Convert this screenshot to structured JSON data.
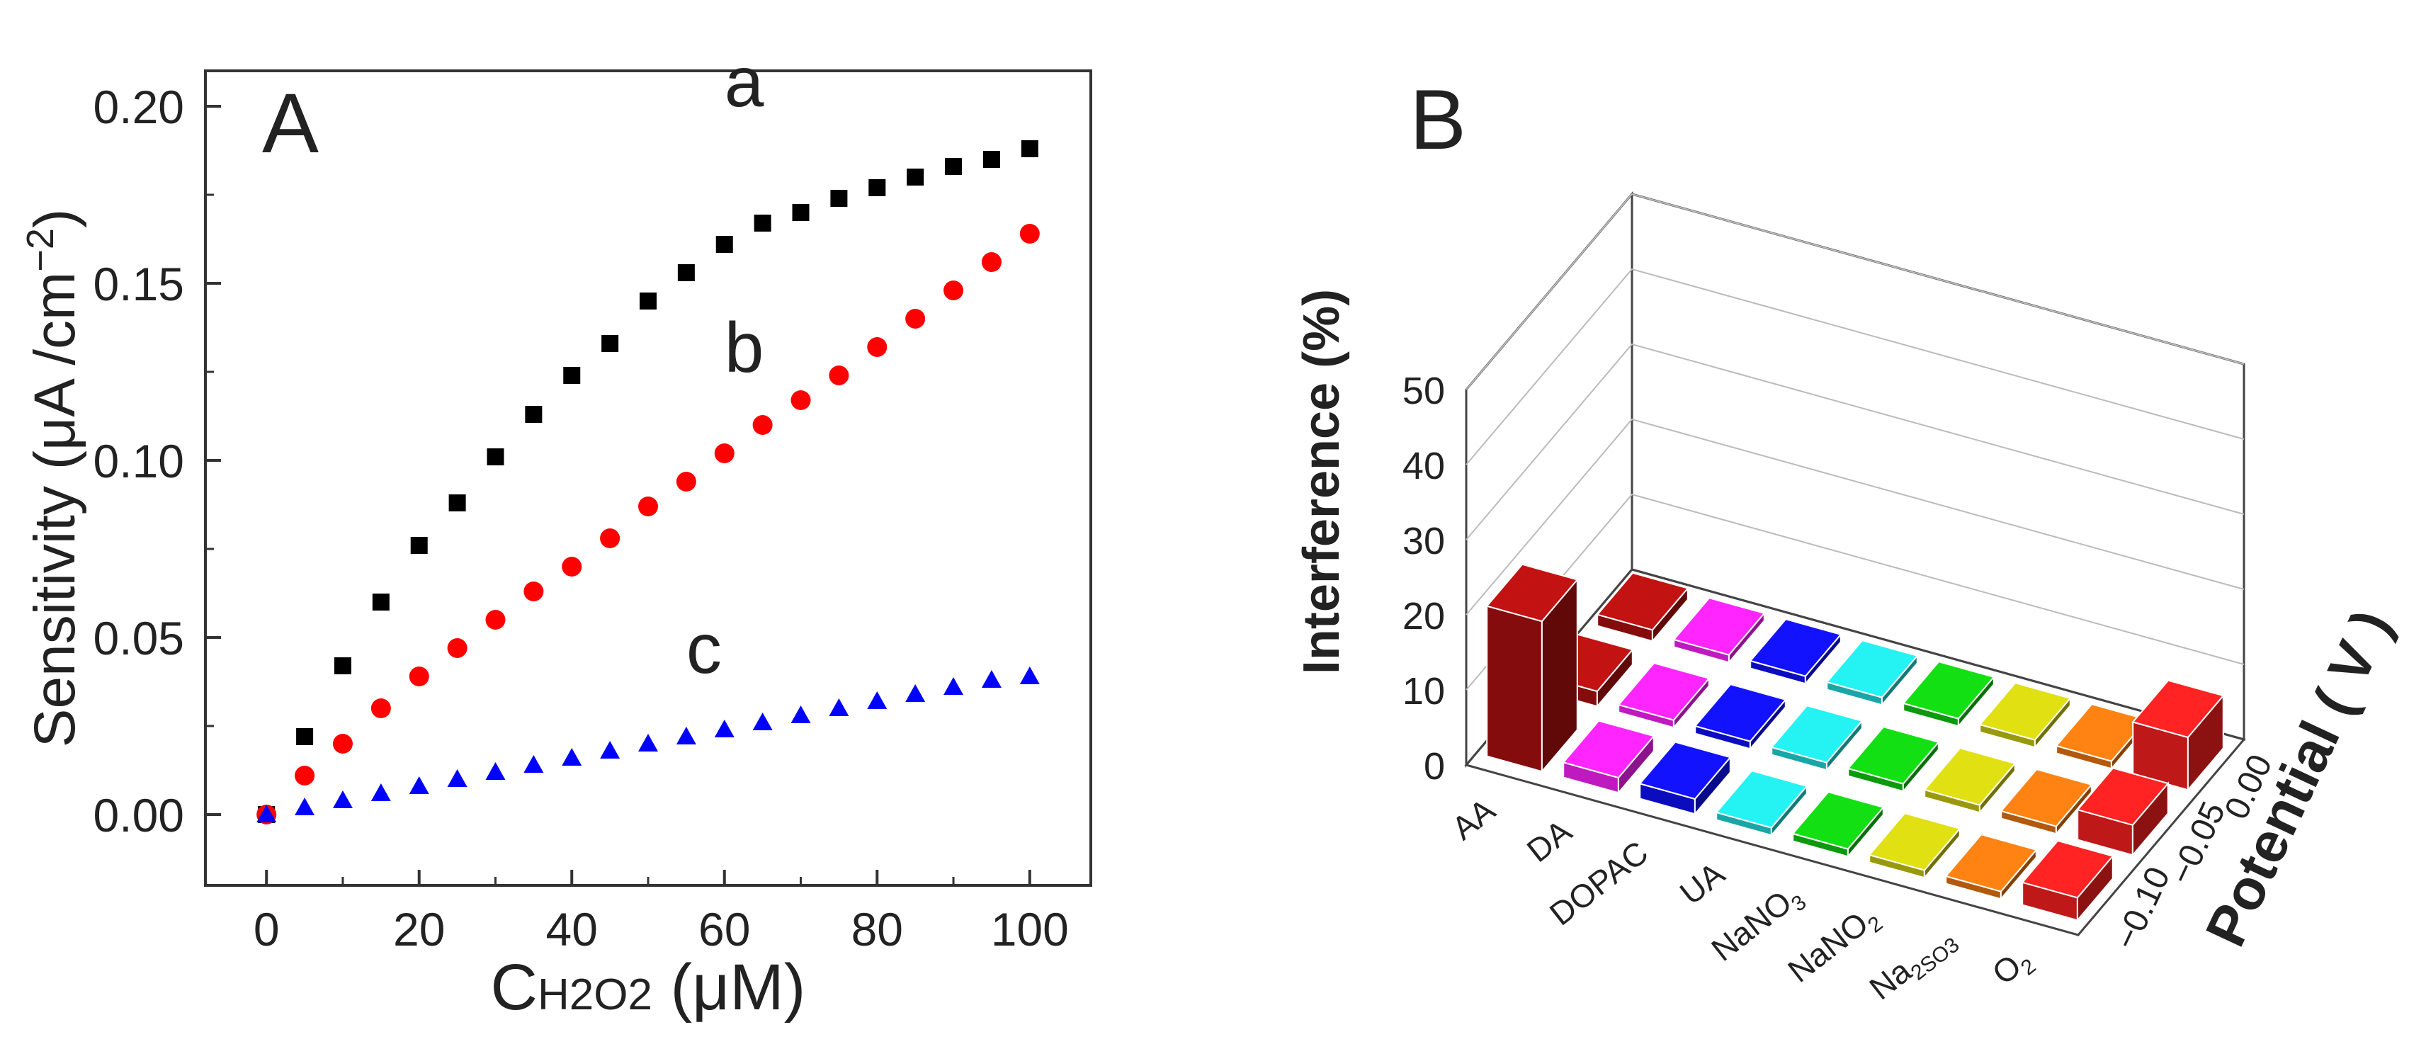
{
  "chart_data": [
    {
      "type": "scatter",
      "panel_label": "A",
      "xlabel_main": "C",
      "xlabel_sub": "H2O2",
      "xlabel_unit": " (μM)",
      "ylabel": "Sensitivity (μA /cm",
      "ylabel_sup": "−2",
      "ylabel_close": ")",
      "xlim": [
        -8,
        108
      ],
      "ylim": [
        -0.02,
        0.21
      ],
      "xticks": [
        0,
        20,
        40,
        60,
        80,
        100
      ],
      "xtick_labels": [
        "0",
        "20",
        "40",
        "60",
        "80",
        "100"
      ],
      "yticks": [
        0.0,
        0.05,
        0.1,
        0.15,
        0.2
      ],
      "ytick_labels": [
        "0.00",
        "0.05",
        "0.10",
        "0.15",
        "0.20"
      ],
      "x": [
        0,
        5,
        10,
        15,
        20,
        25,
        30,
        35,
        40,
        45,
        50,
        55,
        60,
        65,
        70,
        75,
        80,
        85,
        90,
        95,
        100
      ],
      "series": [
        {
          "name": "a",
          "marker": "square",
          "color": "#000000",
          "values": [
            0.0,
            0.022,
            0.042,
            0.06,
            0.076,
            0.088,
            0.101,
            0.113,
            0.124,
            0.133,
            0.145,
            0.153,
            0.161,
            0.167,
            0.17,
            0.174,
            0.177,
            0.18,
            0.183,
            0.185,
            0.188
          ]
        },
        {
          "name": "b",
          "marker": "circle",
          "color": "#ff0000",
          "values": [
            0.0,
            0.011,
            0.02,
            0.03,
            0.039,
            0.047,
            0.055,
            0.063,
            0.07,
            0.078,
            0.087,
            0.094,
            0.102,
            0.11,
            0.117,
            0.124,
            0.132,
            0.14,
            0.148,
            0.156,
            0.164
          ]
        },
        {
          "name": "c",
          "marker": "triangle",
          "color": "#0000ff",
          "values": [
            0.0,
            0.002,
            0.004,
            0.006,
            0.008,
            0.01,
            0.012,
            0.014,
            0.016,
            0.018,
            0.02,
            0.022,
            0.024,
            0.026,
            0.028,
            0.03,
            0.032,
            0.034,
            0.036,
            0.038,
            0.039
          ]
        }
      ]
    },
    {
      "type": "bar3d",
      "panel_label": "B",
      "zlabel": "Interference (%)",
      "ylabel": "Potential ( V )",
      "zlim": [
        0,
        50
      ],
      "zticks": [
        0,
        10,
        20,
        30,
        40,
        50
      ],
      "ztick_labels": [
        "0",
        "10",
        "20",
        "30",
        "40",
        "50"
      ],
      "categories": [
        "AA",
        "DA",
        "DOPAC",
        "UA",
        "NaNO",
        "NaNO",
        "Na",
        "O"
      ],
      "category_subscripts": [
        "",
        "",
        "",
        "",
        "3",
        "2",
        "2SO3",
        "2"
      ],
      "potentials": [
        -0.1,
        -0.05,
        0.0
      ],
      "potential_labels": [
        "−0.10",
        "−0.05",
        "0.00"
      ],
      "colors": [
        "#b01010",
        "#ff22ff",
        "#1010ff",
        "#22dddd",
        "#11cc11",
        "#cccc11",
        "#ee7711",
        "#ff2020"
      ],
      "series": [
        {
          "potential": -0.1,
          "values": [
            20,
            2,
            2,
            1,
            1,
            1,
            1,
            3
          ]
        },
        {
          "potential": -0.05,
          "values": [
            2,
            1,
            1,
            1,
            1,
            1,
            1,
            4
          ]
        },
        {
          "potential": 0.0,
          "values": [
            1.5,
            1,
            1,
            1,
            1,
            1,
            1,
            7
          ]
        }
      ]
    }
  ]
}
